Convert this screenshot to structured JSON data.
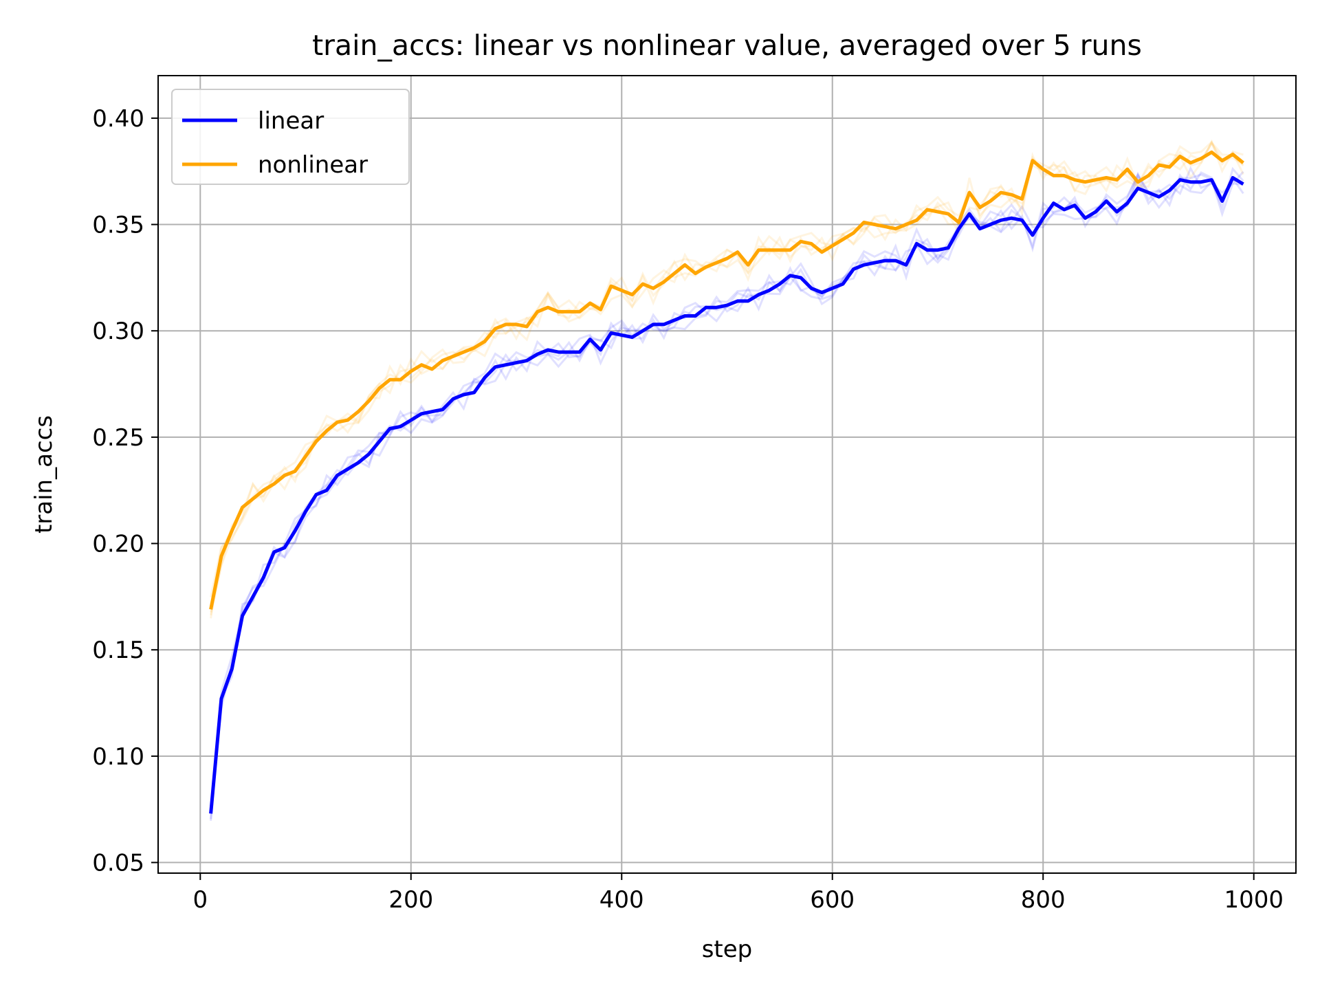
{
  "chart_data": {
    "type": "line",
    "title": "train_accs: linear vs nonlinear value, averaged over 5 runs",
    "xlabel": "step",
    "ylabel": "train_accs",
    "xlim": [
      -40,
      1040
    ],
    "ylim": [
      0.045,
      0.42
    ],
    "xticks": [
      0,
      200,
      400,
      600,
      800,
      1000
    ],
    "yticks": [
      0.05,
      0.1,
      0.15,
      0.2,
      0.25,
      0.3,
      0.35,
      0.4
    ],
    "xtick_labels": [
      "0",
      "200",
      "400",
      "600",
      "800",
      "1000"
    ],
    "ytick_labels": [
      "0.05",
      "0.10",
      "0.15",
      "0.20",
      "0.25",
      "0.30",
      "0.35",
      "0.40"
    ],
    "grid": true,
    "legend_position": "top-left",
    "x": [
      10,
      20,
      30,
      40,
      50,
      60,
      70,
      80,
      90,
      100,
      110,
      120,
      130,
      140,
      150,
      160,
      170,
      180,
      190,
      200,
      210,
      220,
      230,
      240,
      250,
      260,
      270,
      280,
      290,
      300,
      310,
      320,
      330,
      340,
      350,
      360,
      370,
      380,
      390,
      400,
      410,
      420,
      430,
      440,
      450,
      460,
      470,
      480,
      490,
      500,
      510,
      520,
      530,
      540,
      550,
      560,
      570,
      580,
      590,
      600,
      610,
      620,
      630,
      640,
      650,
      660,
      670,
      680,
      690,
      700,
      710,
      720,
      730,
      740,
      750,
      760,
      770,
      780,
      790,
      800,
      810,
      820,
      830,
      840,
      850,
      860,
      870,
      880,
      890,
      900,
      910,
      920,
      930,
      940,
      950,
      960,
      970,
      980,
      990
    ],
    "series": [
      {
        "name": "linear",
        "color": "#0000ff",
        "values": [
          0.073,
          0.127,
          0.141,
          0.166,
          0.175,
          0.184,
          0.196,
          0.198,
          0.206,
          0.215,
          0.223,
          0.225,
          0.232,
          0.235,
          0.238,
          0.242,
          0.248,
          0.254,
          0.255,
          0.258,
          0.261,
          0.262,
          0.263,
          0.268,
          0.27,
          0.271,
          0.278,
          0.283,
          0.284,
          0.285,
          0.286,
          0.289,
          0.291,
          0.29,
          0.29,
          0.29,
          0.296,
          0.291,
          0.299,
          0.298,
          0.297,
          0.3,
          0.303,
          0.303,
          0.305,
          0.307,
          0.307,
          0.311,
          0.311,
          0.312,
          0.314,
          0.314,
          0.317,
          0.319,
          0.322,
          0.326,
          0.325,
          0.32,
          0.318,
          0.32,
          0.322,
          0.329,
          0.331,
          0.332,
          0.333,
          0.333,
          0.331,
          0.341,
          0.338,
          0.338,
          0.339,
          0.348,
          0.355,
          0.348,
          0.35,
          0.352,
          0.353,
          0.352,
          0.345,
          0.353,
          0.36,
          0.357,
          0.359,
          0.353,
          0.356,
          0.361,
          0.356,
          0.36,
          0.367,
          0.365,
          0.363,
          0.366,
          0.371,
          0.37,
          0.37,
          0.371,
          0.361,
          0.372,
          0.369
        ]
      },
      {
        "name": "nonlinear",
        "color": "#ffa500",
        "values": [
          0.169,
          0.194,
          0.206,
          0.217,
          0.221,
          0.225,
          0.228,
          0.232,
          0.234,
          0.241,
          0.248,
          0.253,
          0.257,
          0.258,
          0.262,
          0.267,
          0.273,
          0.277,
          0.277,
          0.281,
          0.284,
          0.282,
          0.286,
          0.288,
          0.29,
          0.292,
          0.295,
          0.301,
          0.303,
          0.303,
          0.302,
          0.309,
          0.311,
          0.309,
          0.309,
          0.309,
          0.313,
          0.31,
          0.321,
          0.319,
          0.317,
          0.322,
          0.32,
          0.323,
          0.327,
          0.331,
          0.327,
          0.33,
          0.332,
          0.334,
          0.337,
          0.331,
          0.338,
          0.338,
          0.338,
          0.338,
          0.342,
          0.341,
          0.337,
          0.34,
          0.343,
          0.346,
          0.351,
          0.35,
          0.349,
          0.348,
          0.35,
          0.352,
          0.357,
          0.356,
          0.355,
          0.351,
          0.365,
          0.358,
          0.361,
          0.365,
          0.364,
          0.362,
          0.38,
          0.376,
          0.373,
          0.373,
          0.371,
          0.37,
          0.371,
          0.372,
          0.371,
          0.376,
          0.37,
          0.373,
          0.378,
          0.377,
          0.382,
          0.379,
          0.381,
          0.384,
          0.38,
          0.383,
          0.379
        ]
      }
    ]
  }
}
